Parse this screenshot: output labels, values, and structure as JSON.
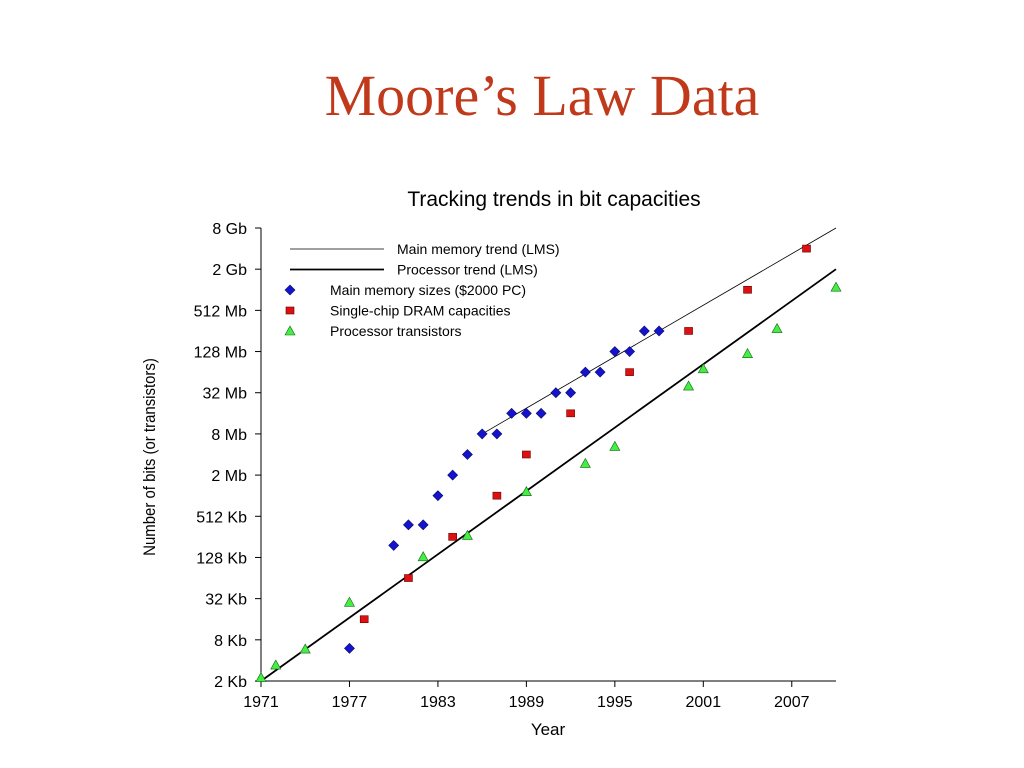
{
  "slide": {
    "title": "Moore’s Law Data"
  },
  "colors": {
    "title": "#c0391b",
    "memory": "#1414cc",
    "dram": "#dd1111",
    "transistor": "#44ee44"
  },
  "chart_data": {
    "type": "scatter",
    "title": "Tracking trends in bit capacities",
    "xlabel": "Year",
    "ylabel": "Number of bits (or transistors)",
    "xlim": [
      1971,
      2010
    ],
    "x_ticks": [
      1971,
      1977,
      1983,
      1989,
      1995,
      2001,
      2007
    ],
    "y_scale": "log2",
    "y_ticks": [
      {
        "value": 2048,
        "label": "2 Kb"
      },
      {
        "value": 8192,
        "label": "8 Kb"
      },
      {
        "value": 32768,
        "label": "32 Kb"
      },
      {
        "value": 131072,
        "label": "128 Kb"
      },
      {
        "value": 524288,
        "label": "512 Kb"
      },
      {
        "value": 2097152,
        "label": "2 Mb"
      },
      {
        "value": 8388608,
        "label": "8 Mb"
      },
      {
        "value": 33554432,
        "label": "32 Mb"
      },
      {
        "value": 134217728,
        "label": "128 Mb"
      },
      {
        "value": 536870912,
        "label": "512 Mb"
      },
      {
        "value": 2147483648,
        "label": "2 Gb"
      },
      {
        "value": 8589934592,
        "label": "8 Gb"
      }
    ],
    "legend_position": "top-left",
    "trends": [
      {
        "name": "Main memory trend (LMS)",
        "style": "thin",
        "points": [
          [
            1986,
            8388608
          ],
          [
            2010,
            8589934592
          ]
        ]
      },
      {
        "name": "Processor trend (LMS)",
        "style": "thick",
        "points": [
          [
            1971,
            2048
          ],
          [
            2010,
            2147483648
          ]
        ]
      }
    ],
    "series": [
      {
        "name": "Main memory sizes ($2000 PC)",
        "marker": "diamond",
        "points": [
          [
            1977,
            6144
          ],
          [
            1980,
            196608
          ],
          [
            1981,
            393216
          ],
          [
            1982,
            393216
          ],
          [
            1983,
            1048576
          ],
          [
            1984,
            2097152
          ],
          [
            1985,
            4194304
          ],
          [
            1986,
            8388608
          ],
          [
            1987,
            8388608
          ],
          [
            1988,
            16777216
          ],
          [
            1989,
            16777216
          ],
          [
            1990,
            16777216
          ],
          [
            1991,
            33554432
          ],
          [
            1992,
            33554432
          ],
          [
            1993,
            67108864
          ],
          [
            1994,
            67108864
          ],
          [
            1995,
            134217728
          ],
          [
            1996,
            134217728
          ],
          [
            1997,
            268435456
          ],
          [
            1998,
            268435456
          ]
        ]
      },
      {
        "name": "Single-chip DRAM capacities",
        "marker": "square",
        "points": [
          [
            1978,
            16384
          ],
          [
            1981,
            65536
          ],
          [
            1984,
            262144
          ],
          [
            1987,
            1048576
          ],
          [
            1989,
            4194304
          ],
          [
            1992,
            16777216
          ],
          [
            1996,
            67108864
          ],
          [
            2000,
            268435456
          ],
          [
            2004,
            1073741824
          ],
          [
            2008,
            4294967296
          ]
        ]
      },
      {
        "name": "Processor transistors",
        "marker": "triangle",
        "points": [
          [
            1971,
            2300
          ],
          [
            1972,
            3500
          ],
          [
            1974,
            6000
          ],
          [
            1977,
            29000
          ],
          [
            1982,
            134000
          ],
          [
            1985,
            275000
          ],
          [
            1989,
            1200000
          ],
          [
            1993,
            3100000
          ],
          [
            1995,
            5500000
          ],
          [
            2000,
            42000000
          ],
          [
            2001,
            75000000
          ],
          [
            2004,
            125000000
          ],
          [
            2006,
            291000000
          ],
          [
            2010,
            1170000000
          ]
        ]
      }
    ]
  }
}
